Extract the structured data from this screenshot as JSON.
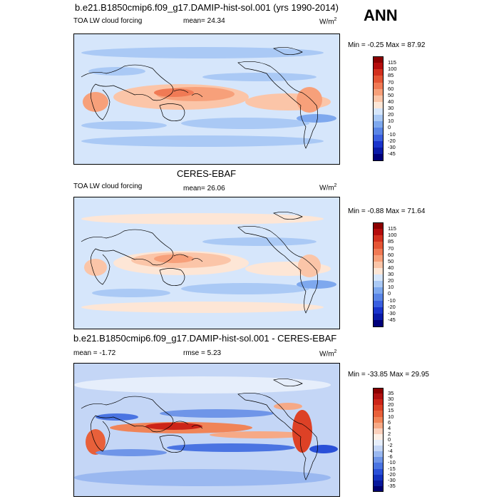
{
  "panels": [
    {
      "id": "model",
      "title": "b.e21.B1850cmip6.f09_g17.DAMIP-hist-sol.001 (yrs 1990-2014)",
      "left_label": "TOA LW cloud forcing",
      "center_label": "mean=  24.34",
      "units": "W/m",
      "units_sup": "2",
      "minmax": "Min =  -0.25 Max =  87.92",
      "colorbar": {
        "labels": [
          "115",
          "100",
          "85",
          "70",
          "60",
          "50",
          "40",
          "30",
          "20",
          "10",
          "0",
          "-10",
          "-20",
          "-30",
          "-45"
        ],
        "colors": [
          "#8b0000",
          "#b40c0c",
          "#d2301e",
          "#e45535",
          "#f07a55",
          "#f7a07a",
          "#fbc5a8",
          "#fde6d6",
          "#d6e6fb",
          "#aac9f5",
          "#7ea8ee",
          "#5a85e6",
          "#3a5fe0",
          "#1a34cc",
          "#0a1aa8",
          "#00007a"
        ]
      }
    },
    {
      "id": "obs",
      "title": "CERES-EBAF",
      "left_label": "TOA LW cloud forcing",
      "center_label": "mean=  26.06",
      "units": "W/m",
      "units_sup": "2",
      "minmax": "Min =  -0.88 Max =  71.64",
      "colorbar": {
        "labels": [
          "115",
          "100",
          "85",
          "70",
          "60",
          "50",
          "40",
          "30",
          "20",
          "10",
          "0",
          "-10",
          "-20",
          "-30",
          "-45"
        ],
        "colors": [
          "#8b0000",
          "#b40c0c",
          "#d2301e",
          "#e45535",
          "#f07a55",
          "#f7a07a",
          "#fbc5a8",
          "#fde6d6",
          "#d6e6fb",
          "#aac9f5",
          "#7ea8ee",
          "#5a85e6",
          "#3a5fe0",
          "#1a34cc",
          "#0a1aa8",
          "#00007a"
        ]
      }
    },
    {
      "id": "diff",
      "title": "b.e21.B1850cmip6.f09_g17.DAMIP-hist-sol.001 - CERES-EBAF",
      "left_label": "mean =  -1.72",
      "center_label": "rmse =   5.23",
      "units": "W/m",
      "units_sup": "2",
      "minmax": "Min = -33.85 Max =  29.95",
      "colorbar": {
        "labels": [
          "35",
          "30",
          "20",
          "15",
          "10",
          "6",
          "4",
          "2",
          "0",
          "-2",
          "-4",
          "-6",
          "-10",
          "-15",
          "-20",
          "-30",
          "-35"
        ],
        "colors": [
          "#8b0000",
          "#b01010",
          "#cc2418",
          "#dd4126",
          "#e8603a",
          "#f08458",
          "#f6a986",
          "#fbd0bc",
          "#fdefe6",
          "#e6eefb",
          "#c4d6f6",
          "#9ab8f0",
          "#6f95e8",
          "#4a74e2",
          "#2a50d8",
          "#1432c0",
          "#08189c",
          "#000070"
        ]
      }
    }
  ],
  "season": "ANN"
}
